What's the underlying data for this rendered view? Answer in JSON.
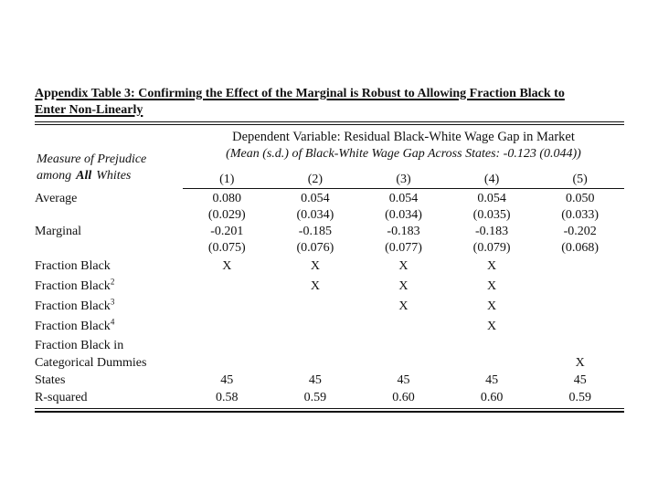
{
  "colors": {
    "background": "#ffffff",
    "text": "#111111",
    "rule": "#111111"
  },
  "table": {
    "title_line1": "Appendix Table 3: Confirming the Effect of the Marginal is Robust to Allowing Fraction Black to",
    "title_line2": "Enter Non-Linearly",
    "header": {
      "dependent_variable": "Dependent Variable: Residual Black-White Wage Gap in Market",
      "mean_sd": "(Mean (s.d.) of Black-White Wage Gap Across States: -0.123 (0.044))",
      "stub_line1": "Measure of Prejudice",
      "stub_line2_part1": "among",
      "stub_line2_part2": "All",
      "stub_line2_part3": "Whites",
      "columns": [
        "(1)",
        "(2)",
        "(3)",
        "(4)",
        "(5)"
      ]
    },
    "rows": [
      {
        "label": "Average",
        "cells": [
          "0.080",
          "0.054",
          "0.054",
          "0.054",
          "0.050"
        ]
      },
      {
        "label": "",
        "cells": [
          "(0.029)",
          "(0.034)",
          "(0.034)",
          "(0.035)",
          "(0.033)"
        ]
      },
      {
        "label": "Marginal",
        "cells": [
          "-0.201",
          "-0.185",
          "-0.183",
          "-0.183",
          "-0.202"
        ]
      },
      {
        "label": "",
        "cells": [
          "(0.075)",
          "(0.076)",
          "(0.077)",
          "(0.079)",
          "(0.068)"
        ]
      },
      {
        "label": "Fraction Black",
        "sup": "",
        "cells": [
          "X",
          "X",
          "X",
          "X",
          ""
        ]
      },
      {
        "label": "Fraction Black",
        "sup": "2",
        "cells": [
          "",
          "X",
          "X",
          "X",
          ""
        ]
      },
      {
        "label": "Fraction Black",
        "sup": "3",
        "cells": [
          "",
          "",
          "X",
          "X",
          ""
        ]
      },
      {
        "label": "Fraction Black",
        "sup": "4",
        "cells": [
          "",
          "",
          "",
          "X",
          ""
        ]
      },
      {
        "label": "Fraction Black in",
        "cells": [
          "",
          "",
          "",
          "",
          ""
        ]
      },
      {
        "label": "Categorical Dummies",
        "cells": [
          "",
          "",
          "",
          "",
          "X"
        ]
      },
      {
        "label": "States",
        "cells": [
          "45",
          "45",
          "45",
          "45",
          "45"
        ]
      },
      {
        "label": "R-squared",
        "cells": [
          "0.58",
          "0.59",
          "0.60",
          "0.60",
          "0.59"
        ]
      }
    ]
  }
}
